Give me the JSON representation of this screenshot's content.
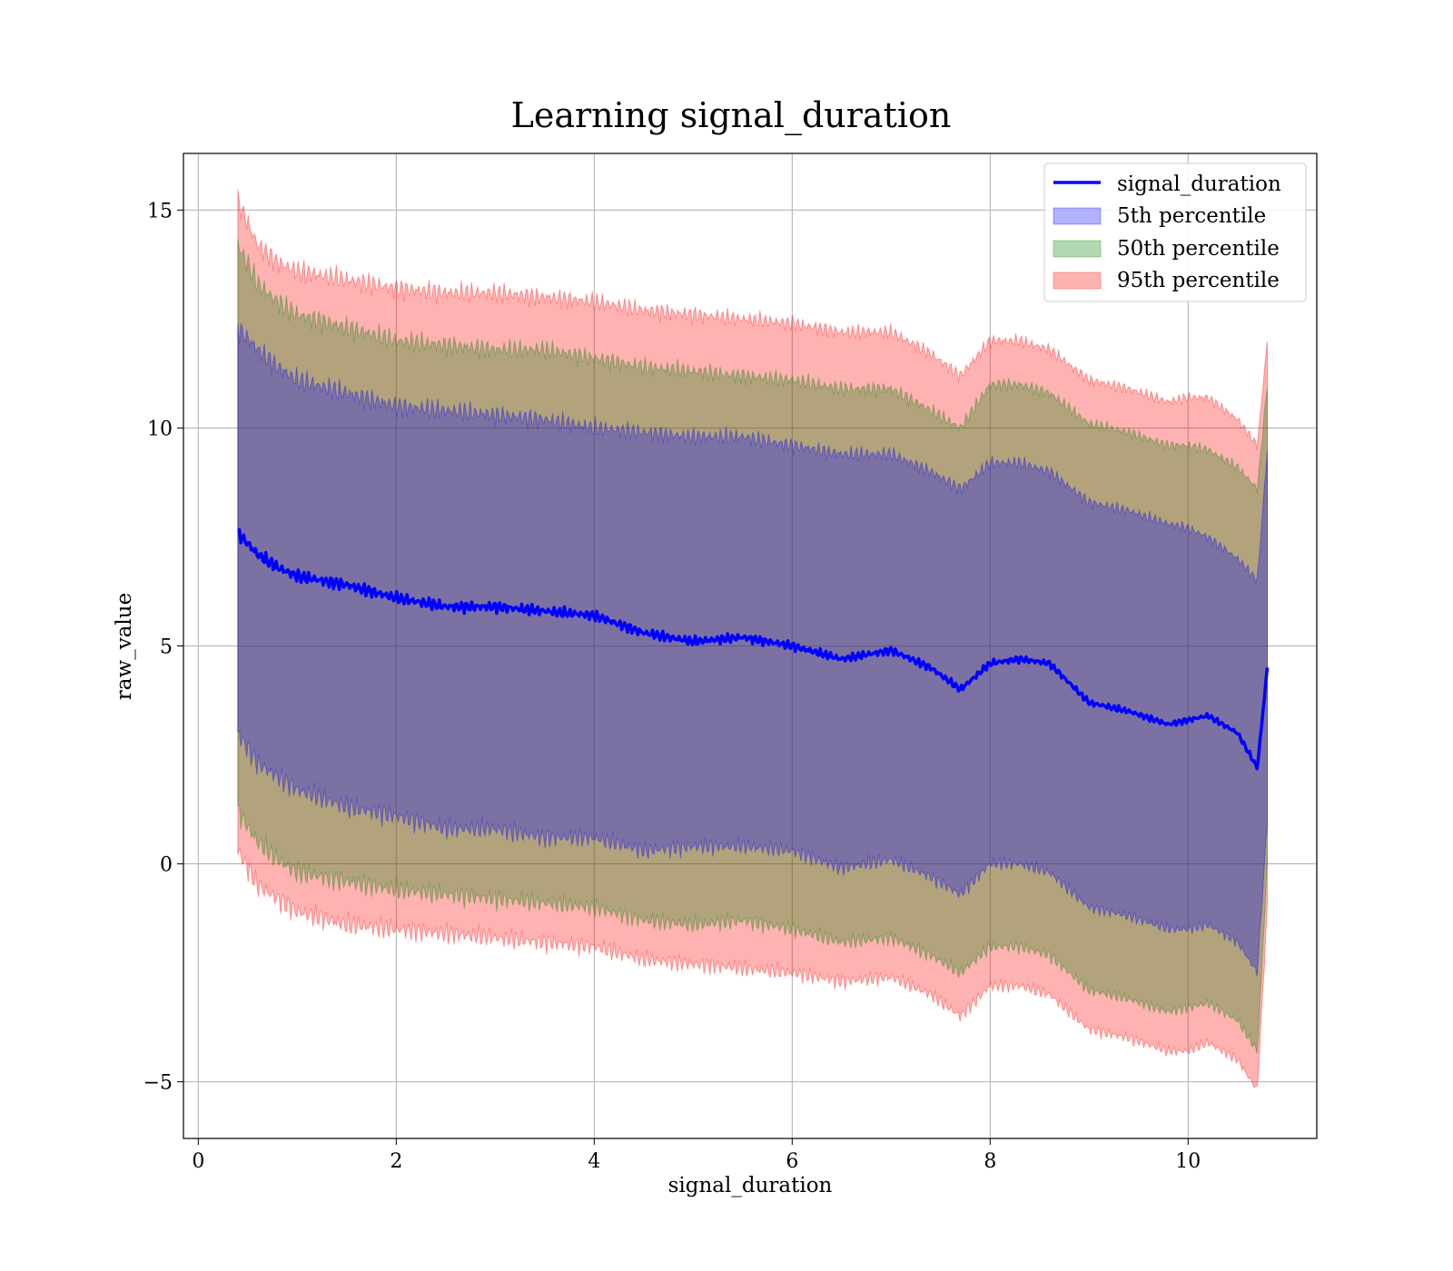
{
  "chart_data": {
    "type": "area",
    "title": "Learning signal_duration",
    "xlabel": "signal_duration",
    "ylabel": "raw_value",
    "xlim": [
      -0.15,
      11.3
    ],
    "ylim": [
      -6.3,
      16.3
    ],
    "xticks": [
      0,
      2,
      4,
      6,
      8,
      10
    ],
    "yticks": [
      -5,
      0,
      5,
      10,
      15
    ],
    "xtick_labels": [
      "0",
      "2",
      "4",
      "6",
      "8",
      "10"
    ],
    "ytick_labels": [
      "−5",
      "0",
      "5",
      "10",
      "15"
    ],
    "grid": true,
    "legend_position": "top-right",
    "x": [
      0.4,
      0.6,
      0.8,
      1.0,
      1.5,
      2.0,
      2.5,
      3.0,
      3.5,
      4.0,
      4.5,
      5.0,
      5.5,
      6.0,
      6.5,
      7.0,
      7.4,
      7.7,
      8.0,
      8.3,
      8.6,
      9.0,
      9.4,
      9.8,
      10.0,
      10.2,
      10.5,
      10.7,
      10.8
    ],
    "series": [
      {
        "name": "signal_duration",
        "kind": "line",
        "color": "#0000ff",
        "values": [
          7.6,
          7.1,
          6.8,
          6.6,
          6.4,
          6.1,
          5.9,
          5.9,
          5.8,
          5.7,
          5.3,
          5.1,
          5.2,
          5.0,
          4.7,
          4.9,
          4.5,
          4.0,
          4.6,
          4.7,
          4.6,
          3.7,
          3.5,
          3.2,
          3.3,
          3.4,
          3.0,
          2.2,
          4.5
        ]
      },
      {
        "name": "5th percentile",
        "kind": "band",
        "color": "#0000ff",
        "opacity": 0.3,
        "lower": [
          3.0,
          2.3,
          2.0,
          1.7,
          1.3,
          1.1,
          0.8,
          0.8,
          0.6,
          0.6,
          0.3,
          0.4,
          0.4,
          0.3,
          -0.1,
          0.1,
          -0.3,
          -0.7,
          0.0,
          0.0,
          -0.2,
          -1.0,
          -1.2,
          -1.5,
          -1.5,
          -1.4,
          -1.8,
          -2.5,
          1.0
        ],
        "upper": [
          12.3,
          11.8,
          11.4,
          11.1,
          10.8,
          10.5,
          10.4,
          10.3,
          10.2,
          10.0,
          9.9,
          9.8,
          9.8,
          9.6,
          9.4,
          9.4,
          9.0,
          8.6,
          9.2,
          9.2,
          9.0,
          8.3,
          8.1,
          7.8,
          7.7,
          7.5,
          7.0,
          6.5,
          9.5
        ]
      },
      {
        "name": "50th percentile",
        "kind": "band",
        "color": "#008000",
        "opacity": 0.3,
        "lower": [
          1.2,
          0.5,
          0.1,
          -0.2,
          -0.4,
          -0.6,
          -0.7,
          -0.8,
          -0.9,
          -1.0,
          -1.3,
          -1.4,
          -1.3,
          -1.5,
          -1.8,
          -1.7,
          -2.1,
          -2.5,
          -1.9,
          -1.9,
          -2.1,
          -2.9,
          -3.1,
          -3.4,
          -3.3,
          -3.2,
          -3.6,
          -4.3,
          0.0
        ]
      },
      {
        "name": "95th percentile",
        "kind": "band",
        "color": "#ff0000",
        "opacity": 0.3,
        "lower": [
          0.3,
          -0.5,
          -0.8,
          -1.1,
          -1.4,
          -1.5,
          -1.6,
          -1.7,
          -1.8,
          -1.9,
          -2.2,
          -2.3,
          -2.4,
          -2.5,
          -2.7,
          -2.6,
          -3.0,
          -3.5,
          -2.8,
          -2.8,
          -3.0,
          -3.8,
          -4.0,
          -4.3,
          -4.3,
          -4.1,
          -4.5,
          -5.2,
          -1.0
        ],
        "upper": [
          15.2,
          14.2,
          13.8,
          13.6,
          13.4,
          13.2,
          13.1,
          13.1,
          13.0,
          12.9,
          12.7,
          12.6,
          12.5,
          12.4,
          12.2,
          12.2,
          11.7,
          11.2,
          12.0,
          12.0,
          11.8,
          11.1,
          10.9,
          10.6,
          10.7,
          10.7,
          10.2,
          9.6,
          12.0
        ]
      }
    ],
    "extra_50th_upper": [
      14.2,
      13.3,
      12.9,
      12.6,
      12.3,
      12.0,
      11.9,
      11.8,
      11.8,
      11.6,
      11.4,
      11.3,
      11.2,
      11.1,
      10.9,
      10.9,
      10.4,
      10.0,
      11.0,
      11.0,
      10.8,
      10.1,
      9.9,
      9.6,
      9.6,
      9.5,
      9.1,
      8.6,
      11.0
    ]
  }
}
